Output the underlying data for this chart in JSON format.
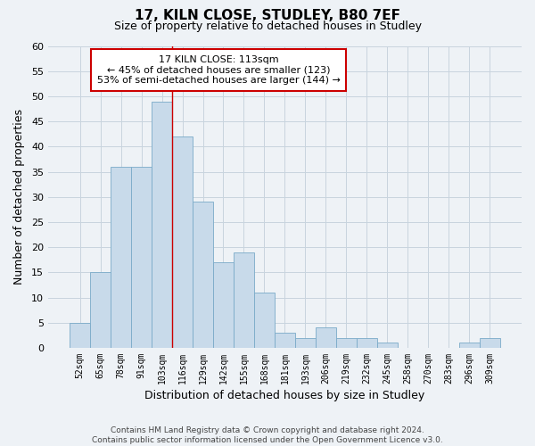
{
  "title": "17, KILN CLOSE, STUDLEY, B80 7EF",
  "subtitle": "Size of property relative to detached houses in Studley",
  "xlabel": "Distribution of detached houses by size in Studley",
  "ylabel": "Number of detached properties",
  "footer_lines": [
    "Contains HM Land Registry data © Crown copyright and database right 2024.",
    "Contains public sector information licensed under the Open Government Licence v3.0."
  ],
  "bin_labels": [
    "52sqm",
    "65sqm",
    "78sqm",
    "91sqm",
    "103sqm",
    "116sqm",
    "129sqm",
    "142sqm",
    "155sqm",
    "168sqm",
    "181sqm",
    "193sqm",
    "206sqm",
    "219sqm",
    "232sqm",
    "245sqm",
    "258sqm",
    "270sqm",
    "283sqm",
    "296sqm",
    "309sqm"
  ],
  "bar_values": [
    5,
    15,
    36,
    36,
    49,
    42,
    29,
    17,
    19,
    11,
    3,
    2,
    4,
    2,
    2,
    1,
    0,
    0,
    0,
    1,
    2
  ],
  "bar_color": "#c8daea",
  "bar_edge_color": "#7aaac8",
  "ylim": [
    0,
    60
  ],
  "yticks": [
    0,
    5,
    10,
    15,
    20,
    25,
    30,
    35,
    40,
    45,
    50,
    55,
    60
  ],
  "property_sqm": 113,
  "vline_x": 4.5,
  "property_label": "17 KILN CLOSE: 113sqm",
  "annotation_line1": "← 45% of detached houses are smaller (123)",
  "annotation_line2": "53% of semi-detached houses are larger (144) →",
  "annotation_box_color": "#ffffff",
  "annotation_box_edge_color": "#cc0000",
  "vline_color": "#cc0000",
  "grid_color": "#c8d4de",
  "background_color": "#eef2f6"
}
